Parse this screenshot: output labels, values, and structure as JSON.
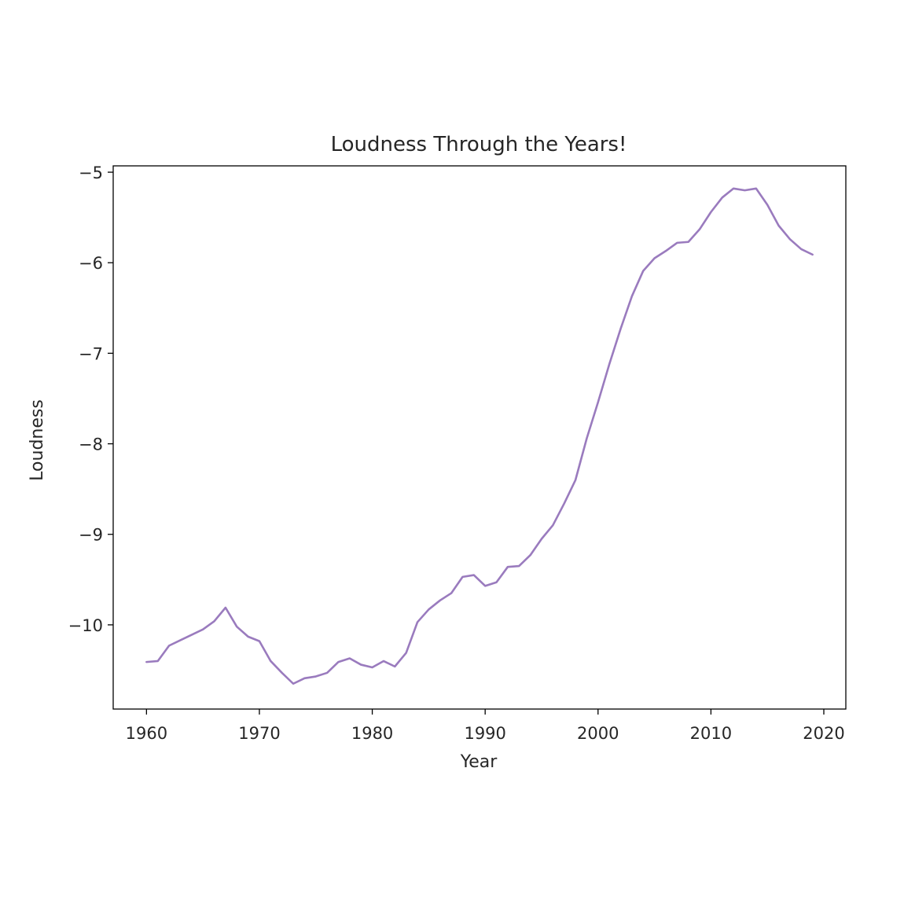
{
  "chart_data": {
    "type": "line",
    "title": "Loudness Through the Years!",
    "xlabel": "Year",
    "ylabel": "Loudness",
    "xlim": [
      1957.05,
      2021.95
    ],
    "ylim": [
      -10.93,
      -4.93
    ],
    "xticks": [
      1960,
      1970,
      1980,
      1990,
      2000,
      2010,
      2020
    ],
    "yticks": [
      -10,
      -9,
      -8,
      -7,
      -6,
      -5
    ],
    "grid": false,
    "legend": "none",
    "line_color": "#9a7bbe",
    "series": [
      {
        "x": [
          1960,
          1961,
          1962,
          1963,
          1964,
          1965,
          1966,
          1967,
          1968,
          1969,
          1970,
          1971,
          1972,
          1973,
          1974,
          1975,
          1976,
          1977,
          1978,
          1979,
          1980,
          1981,
          1982,
          1983,
          1984,
          1985,
          1986,
          1987,
          1988,
          1989,
          1990,
          1991,
          1992,
          1993,
          1994,
          1995,
          1996,
          1997,
          1998,
          1999,
          2000,
          2001,
          2002,
          2003,
          2004,
          2005,
          2006,
          2007,
          2008,
          2009,
          2010,
          2011,
          2012,
          2013,
          2014,
          2015,
          2016,
          2017,
          2018,
          2019
        ],
        "values": [
          -10.41,
          -10.4,
          -10.23,
          -10.17,
          -10.11,
          -10.05,
          -9.96,
          -9.81,
          -10.02,
          -10.13,
          -10.18,
          -10.4,
          -10.53,
          -10.65,
          -10.59,
          -10.57,
          -10.53,
          -10.41,
          -10.37,
          -10.44,
          -10.47,
          -10.4,
          -10.46,
          -10.31,
          -9.97,
          -9.83,
          -9.73,
          -9.65,
          -9.47,
          -9.45,
          -9.57,
          -9.53,
          -9.36,
          -9.35,
          -9.23,
          -9.05,
          -8.9,
          -8.66,
          -8.4,
          -7.94,
          -7.54,
          -7.12,
          -6.73,
          -6.37,
          -6.09,
          -5.95,
          -5.87,
          -5.78,
          -5.77,
          -5.63,
          -5.44,
          -5.28,
          -5.18,
          -5.2,
          -5.18,
          -5.36,
          -5.59,
          -5.74,
          -5.85,
          -5.91
        ]
      }
    ]
  }
}
